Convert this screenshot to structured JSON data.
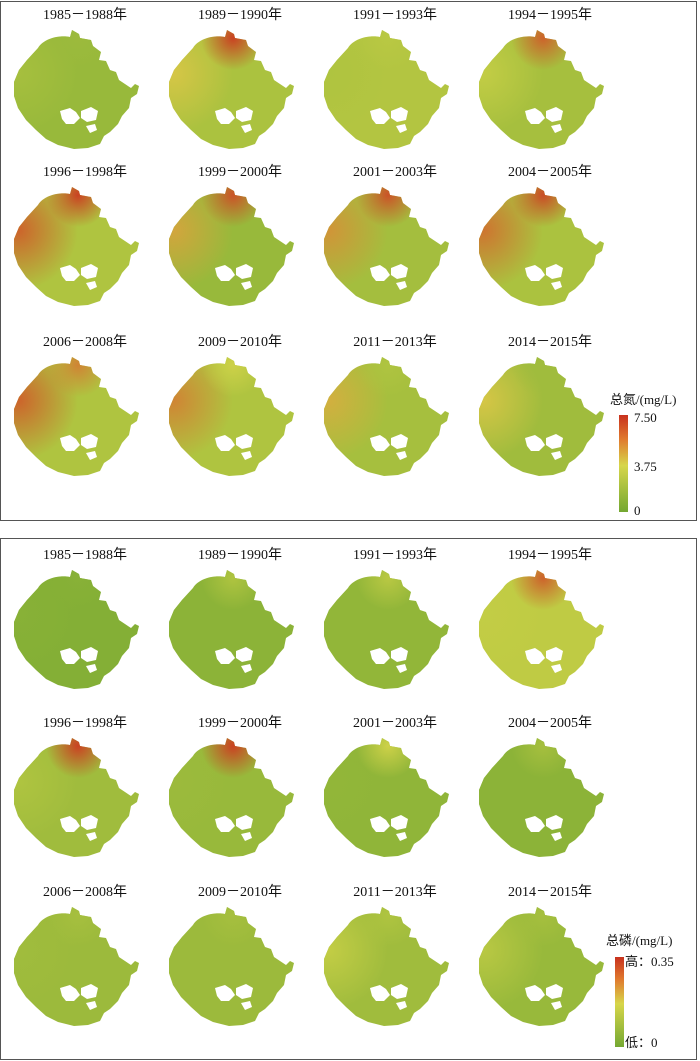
{
  "total_nitrogen": {
    "legend": {
      "title": "总氮/(mg/L)",
      "max_label": "7.50",
      "mid_label": "3.75",
      "min_label": "0"
    },
    "maps": [
      {
        "period": "1985－1988年",
        "level": 0.18,
        "nw": 0.25,
        "north": 0.2
      },
      {
        "period": "1989－1990年",
        "level": 0.28,
        "nw": 0.55,
        "north": 0.95
      },
      {
        "period": "1991－1993年",
        "level": 0.32,
        "nw": 0.3,
        "north": 0.35
      },
      {
        "period": "1994－1995年",
        "level": 0.25,
        "nw": 0.4,
        "north": 0.85
      },
      {
        "period": "1996－1998年",
        "level": 0.3,
        "nw": 0.85,
        "north": 0.95
      },
      {
        "period": "1999－2000年",
        "level": 0.18,
        "nw": 0.65,
        "north": 0.9
      },
      {
        "period": "2001－2003年",
        "level": 0.24,
        "nw": 0.7,
        "north": 0.9
      },
      {
        "period": "2004－2005年",
        "level": 0.28,
        "nw": 0.8,
        "north": 0.92
      },
      {
        "period": "2006－2008年",
        "level": 0.3,
        "nw": 0.85,
        "north": 0.75
      },
      {
        "period": "2009－2010年",
        "level": 0.3,
        "nw": 0.75,
        "north": 0.45
      },
      {
        "period": "2011－2013年",
        "level": 0.25,
        "nw": 0.62,
        "north": 0.3
      },
      {
        "period": "2014－2015年",
        "level": 0.22,
        "nw": 0.55,
        "north": 0.22
      }
    ]
  },
  "total_phosphorus": {
    "legend": {
      "title": "总磷/(mg/L)",
      "max_label": "高：0.35",
      "min_label": "低：0"
    },
    "maps": [
      {
        "period": "1985－1988年",
        "level": 0.08,
        "nw": 0.1,
        "north": 0.1
      },
      {
        "period": "1989－1990年",
        "level": 0.12,
        "nw": 0.12,
        "north": 0.3
      },
      {
        "period": "1991－1993年",
        "level": 0.15,
        "nw": 0.15,
        "north": 0.35
      },
      {
        "period": "1994－1995年",
        "level": 0.38,
        "nw": 0.4,
        "north": 0.85
      },
      {
        "period": "1996－1998年",
        "level": 0.22,
        "nw": 0.3,
        "north": 0.95
      },
      {
        "period": "1999－2000年",
        "level": 0.18,
        "nw": 0.2,
        "north": 0.95
      },
      {
        "period": "2001－2003年",
        "level": 0.14,
        "nw": 0.15,
        "north": 0.45
      },
      {
        "period": "2004－2005年",
        "level": 0.12,
        "nw": 0.12,
        "north": 0.25
      },
      {
        "period": "2006－2008年",
        "level": 0.2,
        "nw": 0.22,
        "north": 0.25
      },
      {
        "period": "2009－2010年",
        "level": 0.2,
        "nw": 0.2,
        "north": 0.25
      },
      {
        "period": "2011－2013年",
        "level": 0.22,
        "nw": 0.4,
        "north": 0.3
      },
      {
        "period": "2014－2015年",
        "level": 0.18,
        "nw": 0.35,
        "north": 0.25
      }
    ]
  },
  "colors": {
    "low": "#74a832",
    "mid": "#d7d64a",
    "high": "#c8321e"
  }
}
